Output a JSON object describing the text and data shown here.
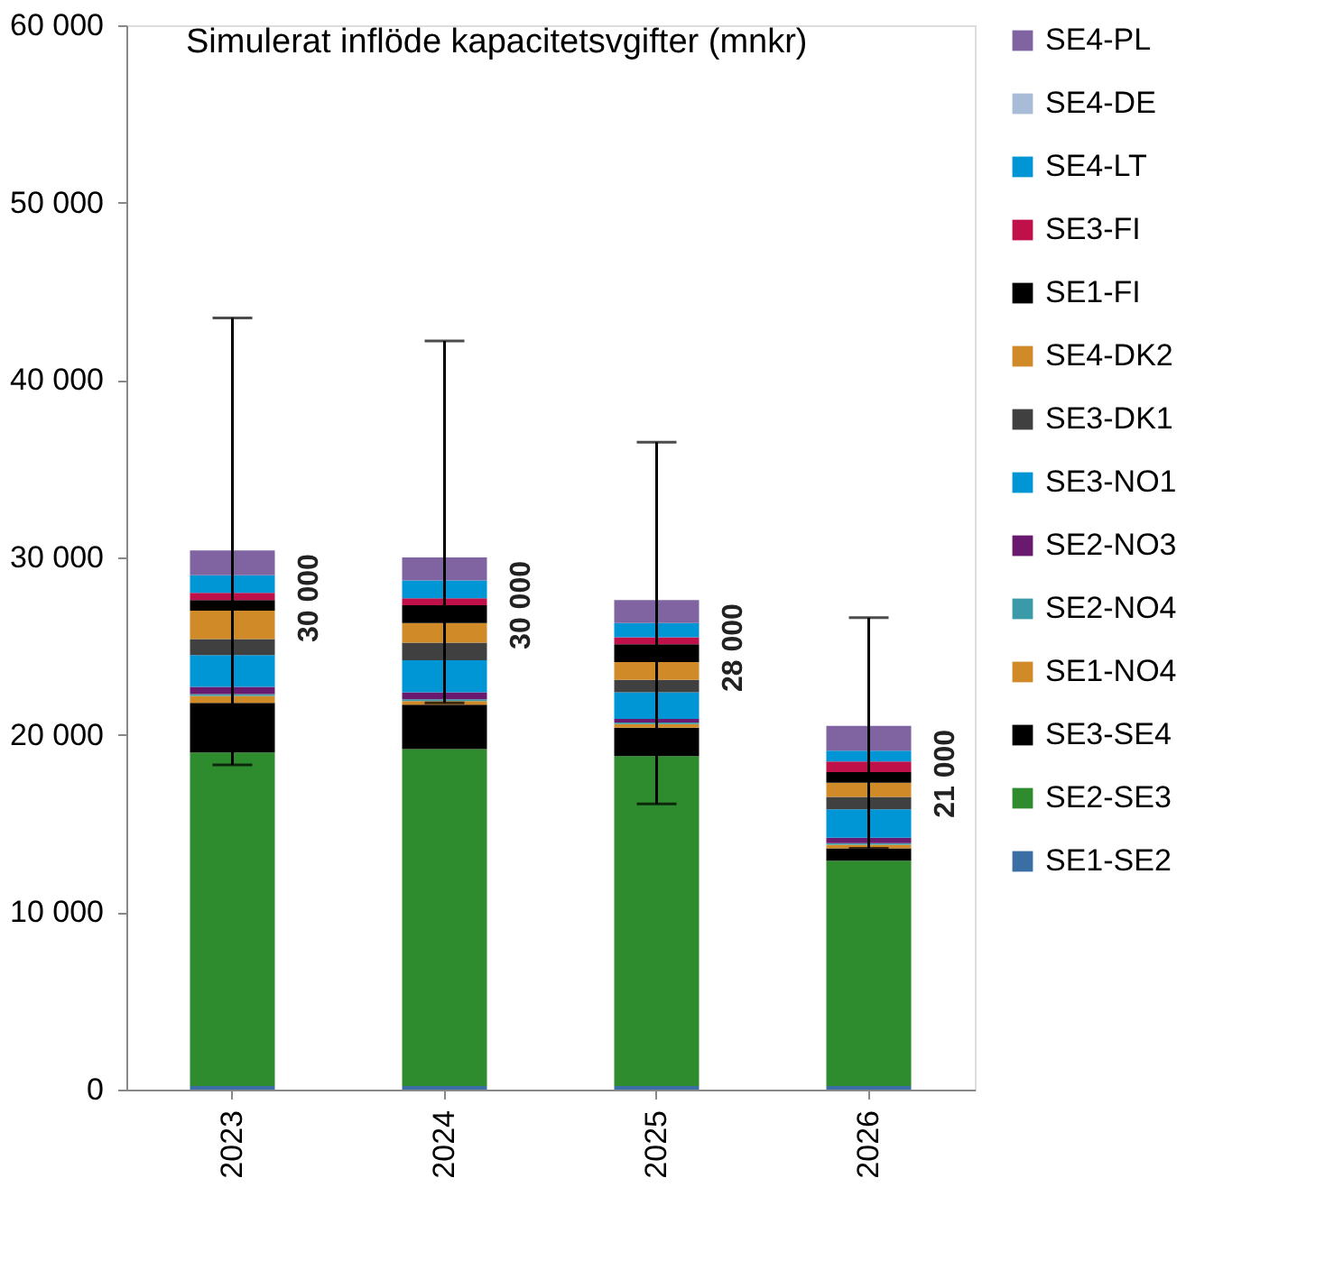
{
  "chart_data": {
    "type": "bar",
    "title": "Simulerat inflöde kapacitetsvgifter (mnkr)",
    "stacked": true,
    "categories": [
      "2023",
      "2024",
      "2025",
      "2026"
    ],
    "series": [
      {
        "name": "SE1-SE2",
        "color": "#3a6ea5",
        "values": [
          200,
          200,
          200,
          200
        ]
      },
      {
        "name": "SE2-SE3",
        "color": "#2e8b2e",
        "values": [
          18800,
          19000,
          18600,
          12700
        ]
      },
      {
        "name": "SE3-SE4",
        "color": "#000000",
        "values": [
          2800,
          2500,
          1600,
          700
        ]
      },
      {
        "name": "SE1-NO4",
        "color": "#d08a28",
        "values": [
          400,
          200,
          200,
          200
        ]
      },
      {
        "name": "SE2-NO4",
        "color": "#3a9aa8",
        "values": [
          100,
          100,
          100,
          100
        ]
      },
      {
        "name": "SE2-NO3",
        "color": "#6a1a6e",
        "values": [
          400,
          400,
          200,
          300
        ]
      },
      {
        "name": "SE3-NO1",
        "color": "#0096d6",
        "values": [
          1800,
          1800,
          1500,
          1600
        ]
      },
      {
        "name": "SE3-DK1",
        "color": "#404040",
        "values": [
          900,
          1000,
          700,
          700
        ]
      },
      {
        "name": "SE4-DK2",
        "color": "#d08a28",
        "values": [
          1600,
          1100,
          1000,
          800
        ]
      },
      {
        "name": "SE1-FI",
        "color": "#000000",
        "values": [
          600,
          1000,
          1000,
          600
        ]
      },
      {
        "name": "SE3-FI",
        "color": "#c0104a",
        "values": [
          400,
          400,
          400,
          600
        ]
      },
      {
        "name": "SE4-LT",
        "color": "#0096d6",
        "values": [
          1000,
          1000,
          800,
          600
        ]
      },
      {
        "name": "SE4-DE",
        "color": "#a8bcd8",
        "values": [
          null,
          null,
          null,
          null
        ]
      },
      {
        "name": "SE4-PL",
        "color": "#8064a2",
        "values": [
          1400,
          1300,
          1300,
          1400
        ],
        "errors": [
          [
            18300,
            43500
          ],
          [
            21800,
            42200
          ],
          [
            16100,
            36500
          ],
          [
            13600,
            26600
          ]
        ]
      }
    ],
    "annotations": [
      {
        "text": "30 000",
        "x": "2023",
        "y": 30400
      },
      {
        "text": "30 000",
        "x": "2024",
        "y": 30000
      },
      {
        "text": "28 000",
        "x": "2025",
        "y": 27600
      },
      {
        "text": "21 000",
        "x": "2026",
        "y": 20500
      }
    ],
    "ylim": [
      0,
      60000
    ],
    "yticks": [
      {
        "value": 0,
        "label": "0"
      },
      {
        "value": 10000,
        "label": "10 000"
      },
      {
        "value": 20000,
        "label": "20 000"
      },
      {
        "value": 30000,
        "label": "30 000"
      },
      {
        "value": 40000,
        "label": "40 000"
      },
      {
        "value": 50000,
        "label": "50 000"
      },
      {
        "value": 60000,
        "label": "60 000"
      }
    ],
    "grid": false,
    "legend": "right"
  }
}
